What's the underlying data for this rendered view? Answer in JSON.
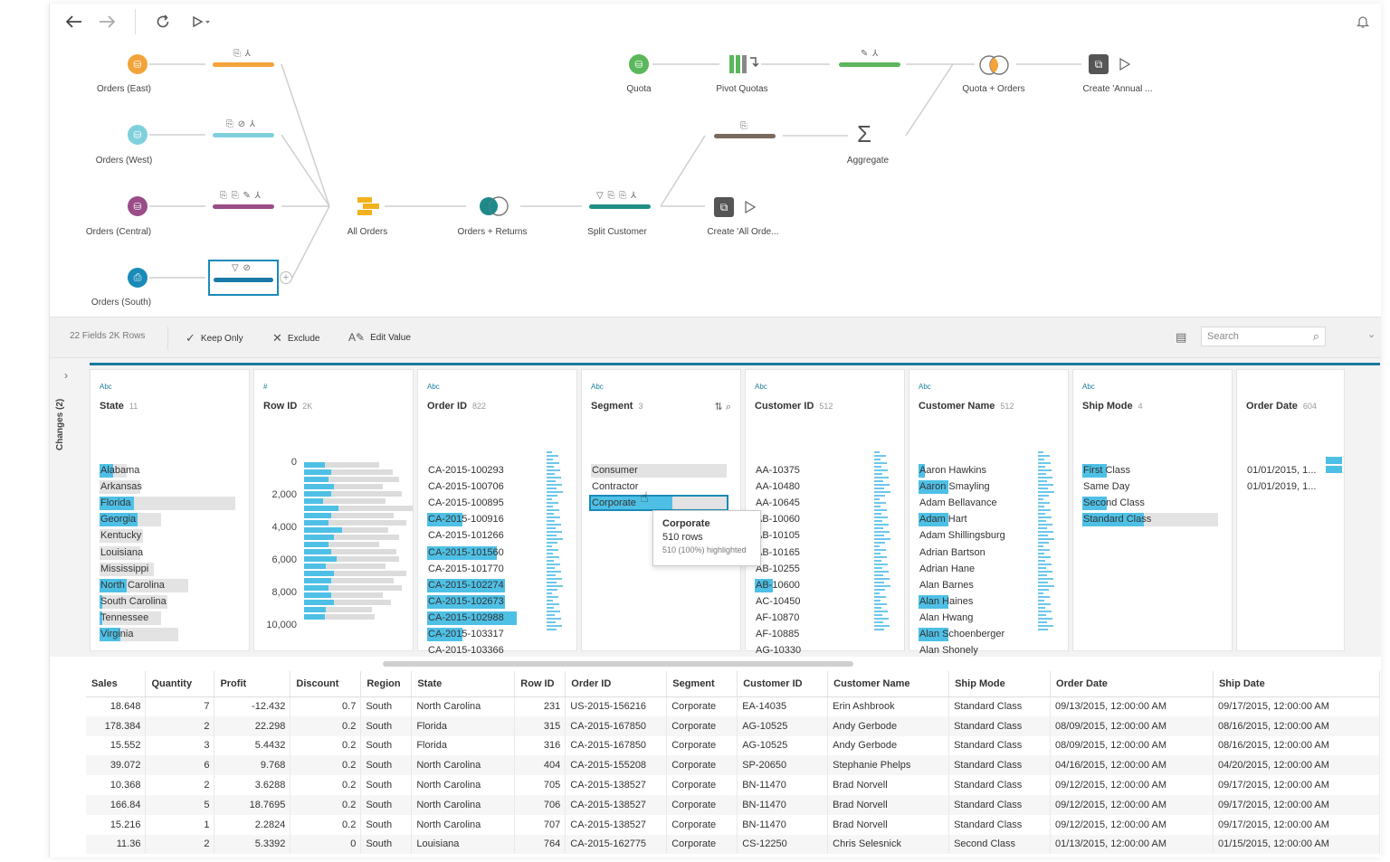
{
  "toolbar": {
    "back_icon": "arrow-left-icon",
    "forward_icon": "arrow-right-icon",
    "refresh_icon": "refresh-icon",
    "run_icon": "play-icon",
    "notify_icon": "bell-icon"
  },
  "flow": {
    "inputs": [
      {
        "label": "Orders (East)",
        "color": "#f2a33a"
      },
      {
        "label": "Orders (West)",
        "color": "#7fd0dd"
      },
      {
        "label": "Orders (Central)",
        "color": "#9a4d87"
      },
      {
        "label": "Orders (South)",
        "color": "#1a8ab8"
      }
    ],
    "clean_colors": [
      "#f2a33a",
      "#7fd0dd",
      "#9a4d87",
      "#1a7aa8"
    ],
    "union_label": "All Orders",
    "join_label": "Orders + Returns",
    "split_label": "Split Customer",
    "output1_label": "Create 'All Orde...",
    "quota_label": "Quota",
    "pivot_label": "Pivot Quotas",
    "aggregate_label": "Aggregate",
    "join2_label": "Quota + Orders",
    "output2_label": "Create 'Annual ..."
  },
  "actionbar": {
    "meta": "22 Fields  2K Rows",
    "keep_only": "Keep Only",
    "exclude": "Exclude",
    "edit_value": "Edit Value",
    "search_placeholder": "Search"
  },
  "profile": {
    "changes_label": "Changes (2)",
    "cards": [
      {
        "type": "Abc",
        "title": "State",
        "count": "11"
      },
      {
        "type": "#",
        "title": "Row ID",
        "count": "2K"
      },
      {
        "type": "Abc",
        "title": "Order ID",
        "count": "822"
      },
      {
        "type": "Abc",
        "title": "Segment",
        "count": "3"
      },
      {
        "type": "Abc",
        "title": "Customer ID",
        "count": "512"
      },
      {
        "type": "Abc",
        "title": "Customer Name",
        "count": "512"
      },
      {
        "type": "Abc",
        "title": "Ship Mode",
        "count": "4"
      },
      {
        "type": "",
        "title": "Order Date",
        "count": "604"
      }
    ],
    "state_values": [
      {
        "label": "Alabama",
        "bg": 0.2,
        "hl": 0.1
      },
      {
        "label": "Arkansas",
        "bg": 0.3,
        "hl": 0.0
      },
      {
        "label": "Florida",
        "bg": 1.0,
        "hl": 0.25
      },
      {
        "label": "Georgia",
        "bg": 0.45,
        "hl": 0.28
      },
      {
        "label": "Kentucky",
        "bg": 0.32,
        "hl": 0.0
      },
      {
        "label": "Louisiana",
        "bg": 0.3,
        "hl": 0.0
      },
      {
        "label": "Mississippi",
        "bg": 0.4,
        "hl": 0.0
      },
      {
        "label": "North Carolina",
        "bg": 0.65,
        "hl": 0.2
      },
      {
        "label": "South Carolina",
        "bg": 0.5,
        "hl": 0.02
      },
      {
        "label": "Tennessee",
        "bg": 0.45,
        "hl": 0.02
      },
      {
        "label": "Virginia",
        "bg": 0.58,
        "hl": 0.15
      }
    ],
    "rowid_ticks": [
      "0",
      "2,000",
      "4,000",
      "6,000",
      "8,000",
      "10,000"
    ],
    "rowid_bars": [
      {
        "bg": 0.55,
        "hl": 0.15
      },
      {
        "bg": 0.65,
        "hl": 0.2
      },
      {
        "bg": 0.7,
        "hl": 0.18
      },
      {
        "bg": 0.58,
        "hl": 0.22
      },
      {
        "bg": 0.72,
        "hl": 0.2
      },
      {
        "bg": 0.6,
        "hl": 0.14
      },
      {
        "bg": 0.8,
        "hl": 0.25
      },
      {
        "bg": 0.66,
        "hl": 0.2
      },
      {
        "bg": 0.75,
        "hl": 0.18
      },
      {
        "bg": 0.62,
        "hl": 0.28
      },
      {
        "bg": 0.7,
        "hl": 0.22
      },
      {
        "bg": 0.55,
        "hl": 0.18
      },
      {
        "bg": 0.68,
        "hl": 0.2
      },
      {
        "bg": 0.7,
        "hl": 0.24
      },
      {
        "bg": 0.6,
        "hl": 0.16
      },
      {
        "bg": 0.75,
        "hl": 0.22
      },
      {
        "bg": 0.66,
        "hl": 0.2
      },
      {
        "bg": 0.72,
        "hl": 0.18
      },
      {
        "bg": 0.58,
        "hl": 0.2
      },
      {
        "bg": 0.64,
        "hl": 0.22
      },
      {
        "bg": 0.5,
        "hl": 0.16
      },
      {
        "bg": 0.52,
        "hl": 0.15
      }
    ],
    "order_ids": [
      {
        "label": "CA-2015-100293",
        "hl": 0.0
      },
      {
        "label": "CA-2015-100706",
        "hl": 0.0
      },
      {
        "label": "CA-2015-100895",
        "hl": 0.0
      },
      {
        "label": "CA-2015-100916",
        "hl": 0.35
      },
      {
        "label": "CA-2015-101266",
        "hl": 0.0
      },
      {
        "label": "CA-2015-101560",
        "hl": 0.7
      },
      {
        "label": "CA-2015-101770",
        "hl": 0.0
      },
      {
        "label": "CA-2015-102274",
        "hl": 0.78
      },
      {
        "label": "CA-2015-102673",
        "hl": 0.78
      },
      {
        "label": "CA-2015-102988",
        "hl": 0.9
      },
      {
        "label": "CA-2015-103317",
        "hl": 0.35
      },
      {
        "label": "CA-2015-103366",
        "hl": 0.0
      }
    ],
    "segments": [
      {
        "label": "Consumer",
        "bg": 1.0,
        "hl": 0.0
      },
      {
        "label": "Contractor",
        "bg": 0.0,
        "hl": 0.0
      },
      {
        "label": "Corporate",
        "bg": 1.0,
        "hl": 0.6
      }
    ],
    "tooltip": {
      "title": "Corporate",
      "rows": "510 rows",
      "pct": "510 (100%) highlighted"
    },
    "customer_ids": [
      {
        "label": "AA-10375",
        "hl": 0.0
      },
      {
        "label": "AA-10480",
        "hl": 0.0
      },
      {
        "label": "AA-10645",
        "hl": 0.0
      },
      {
        "label": "AB-10060",
        "hl": 0.0
      },
      {
        "label": "AB-10105",
        "hl": 0.0
      },
      {
        "label": "AB-10165",
        "hl": 0.0
      },
      {
        "label": "AB-10255",
        "hl": 0.0
      },
      {
        "label": "AB-10600",
        "hl": 0.18
      },
      {
        "label": "AC-10450",
        "hl": 0.0
      },
      {
        "label": "AF-10870",
        "hl": 0.0
      },
      {
        "label": "AF-10885",
        "hl": 0.0
      },
      {
        "label": "AG-10330",
        "hl": 0.0
      }
    ],
    "customer_names": [
      {
        "label": "Aaron Hawkins",
        "hl": 0.06
      },
      {
        "label": "Aaron Smayling",
        "hl": 0.3
      },
      {
        "label": "Adam Bellavance",
        "hl": 0.0
      },
      {
        "label": "Adam Hart",
        "hl": 0.3
      },
      {
        "label": "Adam Shillingsburg",
        "hl": 0.0
      },
      {
        "label": "Adrian Bartson",
        "hl": 0.0
      },
      {
        "label": "Adrian Hane",
        "hl": 0.0
      },
      {
        "label": "Alan Barnes",
        "hl": 0.0
      },
      {
        "label": "Alan Haines",
        "hl": 0.3
      },
      {
        "label": "Alan Hwang",
        "hl": 0.0
      },
      {
        "label": "Alan Schoenberger",
        "hl": 0.3
      },
      {
        "label": "Alan Shonely",
        "hl": 0.0
      }
    ],
    "ship_modes": [
      {
        "label": "First Class",
        "bg": 0.0,
        "hl": 0.18
      },
      {
        "label": "Same Day",
        "bg": 0.0,
        "hl": 0.0
      },
      {
        "label": "Second Class",
        "bg": 0.0,
        "hl": 0.18
      },
      {
        "label": "Standard Class",
        "bg": 1.0,
        "hl": 0.45
      }
    ],
    "order_dates": [
      {
        "label": "01/01/2015, 1..."
      },
      {
        "label": "01/01/2019, 1..."
      }
    ]
  },
  "grid": {
    "columns": [
      "Sales",
      "Quantity",
      "Profit",
      "Discount",
      "Region",
      "State",
      "Row ID",
      "Order ID",
      "Segment",
      "Customer ID",
      "Customer Name",
      "Ship Mode",
      "Order Date",
      "Ship Date"
    ],
    "rows": [
      [
        "18.648",
        "7",
        "-12.432",
        "0.7",
        "South",
        "North Carolina",
        "231",
        "US-2015-156216",
        "Corporate",
        "EA-14035",
        "Erin Ashbrook",
        "Standard Class",
        "09/13/2015, 12:00:00 AM",
        "09/17/2015, 12:00:00 AM"
      ],
      [
        "178.384",
        "2",
        "22.298",
        "0.2",
        "South",
        "Florida",
        "315",
        "CA-2015-167850",
        "Corporate",
        "AG-10525",
        "Andy Gerbode",
        "Standard Class",
        "08/09/2015, 12:00:00 AM",
        "08/16/2015, 12:00:00 AM"
      ],
      [
        "15.552",
        "3",
        "5.4432",
        "0.2",
        "South",
        "Florida",
        "316",
        "CA-2015-167850",
        "Corporate",
        "AG-10525",
        "Andy Gerbode",
        "Standard Class",
        "08/09/2015, 12:00:00 AM",
        "08/16/2015, 12:00:00 AM"
      ],
      [
        "39.072",
        "6",
        "9.768",
        "0.2",
        "South",
        "North Carolina",
        "404",
        "CA-2015-155208",
        "Corporate",
        "SP-20650",
        "Stephanie Phelps",
        "Standard Class",
        "04/16/2015, 12:00:00 AM",
        "04/20/2015, 12:00:00 AM"
      ],
      [
        "10.368",
        "2",
        "3.6288",
        "0.2",
        "South",
        "North Carolina",
        "705",
        "CA-2015-138527",
        "Corporate",
        "BN-11470",
        "Brad Norvell",
        "Standard Class",
        "09/12/2015, 12:00:00 AM",
        "09/17/2015, 12:00:00 AM"
      ],
      [
        "166.84",
        "5",
        "18.7695",
        "0.2",
        "South",
        "North Carolina",
        "706",
        "CA-2015-138527",
        "Corporate",
        "BN-11470",
        "Brad Norvell",
        "Standard Class",
        "09/12/2015, 12:00:00 AM",
        "09/17/2015, 12:00:00 AM"
      ],
      [
        "15.216",
        "1",
        "2.2824",
        "0.2",
        "South",
        "North Carolina",
        "707",
        "CA-2015-138527",
        "Corporate",
        "BN-11470",
        "Brad Norvell",
        "Standard Class",
        "09/12/2015, 12:00:00 AM",
        "09/17/2015, 12:00:00 AM"
      ],
      [
        "11.36",
        "2",
        "5.3392",
        "0",
        "South",
        "Louisiana",
        "764",
        "CA-2015-162775",
        "Corporate",
        "CS-12250",
        "Chris Selesnick",
        "Second Class",
        "01/13/2015, 12:00:00 AM",
        "01/15/2015, 12:00:00 AM"
      ]
    ]
  }
}
